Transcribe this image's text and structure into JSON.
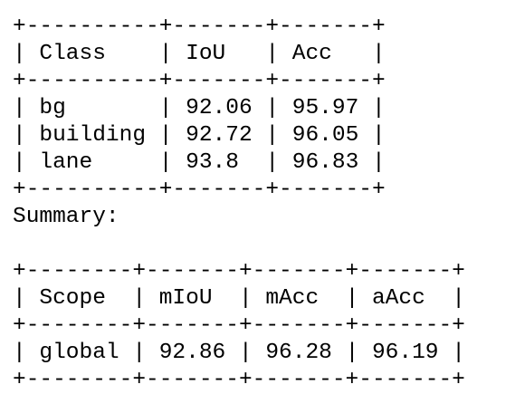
{
  "table1": {
    "header": [
      "Class",
      "IoU",
      "Acc"
    ],
    "rows": [
      [
        "bg",
        92.06,
        95.97
      ],
      [
        "building",
        92.72,
        96.05
      ],
      [
        "lane",
        93.8,
        96.83
      ]
    ]
  },
  "summary_label": "Summary:",
  "table2": {
    "header": [
      "Scope",
      "mIoU",
      "mAcc",
      "aAcc"
    ],
    "rows": [
      [
        "global",
        92.86,
        96.28,
        96.19
      ]
    ]
  }
}
